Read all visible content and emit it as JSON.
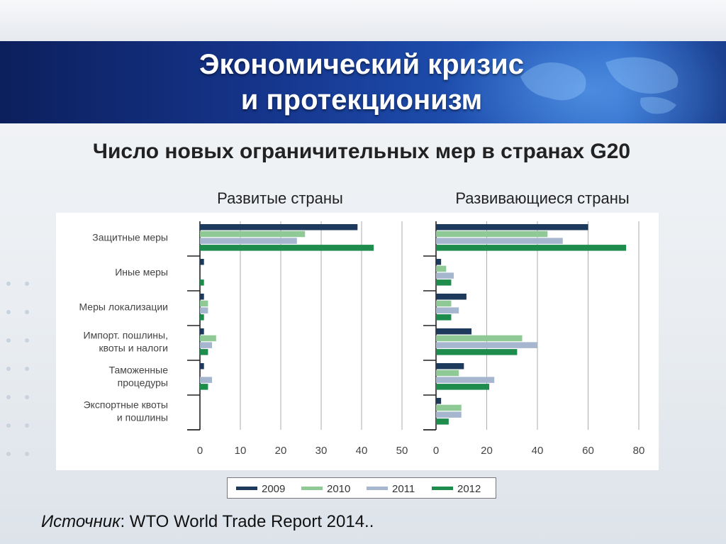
{
  "slide": {
    "title_line1": "Экономический кризис",
    "title_line2": "и протекционизм",
    "source_label": "Источник",
    "source_text": ": WTO World Trade Report 2014.."
  },
  "colors": {
    "2009": "#1d3a5c",
    "2010": "#8fc995",
    "2011": "#a7b6cf",
    "2012": "#1e8c4c"
  },
  "chart_data": {
    "type": "bar",
    "orientation": "horizontal",
    "title": "Число новых ограничительных мер в странах G20",
    "categories": [
      [
        "Защитные меры"
      ],
      [
        "Иные меры"
      ],
      [
        "Меры локализации"
      ],
      [
        "Импорт. пошлины,",
        "квоты и налоги"
      ],
      [
        "Таможенные",
        "процедуры"
      ],
      [
        "Экспортные квоты",
        "и пошлины"
      ]
    ],
    "legend": [
      "2009",
      "2010",
      "2011",
      "2012"
    ],
    "legend_position": "bottom",
    "grid": "vertical",
    "panels": [
      {
        "title": "Развитые страны",
        "xlim": [
          0,
          50
        ],
        "ticks": [
          0,
          10,
          20,
          30,
          40,
          50
        ],
        "series": [
          {
            "name": "2009",
            "values": [
              39,
              1,
              1,
              1,
              1,
              0
            ]
          },
          {
            "name": "2010",
            "values": [
              26,
              0,
              2,
              4,
              0,
              0
            ]
          },
          {
            "name": "2011",
            "values": [
              24,
              0,
              2,
              3,
              3,
              0
            ]
          },
          {
            "name": "2012",
            "values": [
              43,
              1,
              1,
              2,
              2,
              0
            ]
          }
        ]
      },
      {
        "title": "Развивающиеся страны",
        "xlim": [
          0,
          80
        ],
        "ticks": [
          0,
          20,
          40,
          60,
          80
        ],
        "series": [
          {
            "name": "2009",
            "values": [
              60,
              2,
              12,
              14,
              11,
              2
            ]
          },
          {
            "name": "2010",
            "values": [
              44,
              4,
              6,
              34,
              9,
              10
            ]
          },
          {
            "name": "2011",
            "values": [
              50,
              7,
              9,
              40,
              23,
              10
            ]
          },
          {
            "name": "2012",
            "values": [
              75,
              6,
              6,
              32,
              21,
              5
            ]
          }
        ]
      }
    ]
  }
}
